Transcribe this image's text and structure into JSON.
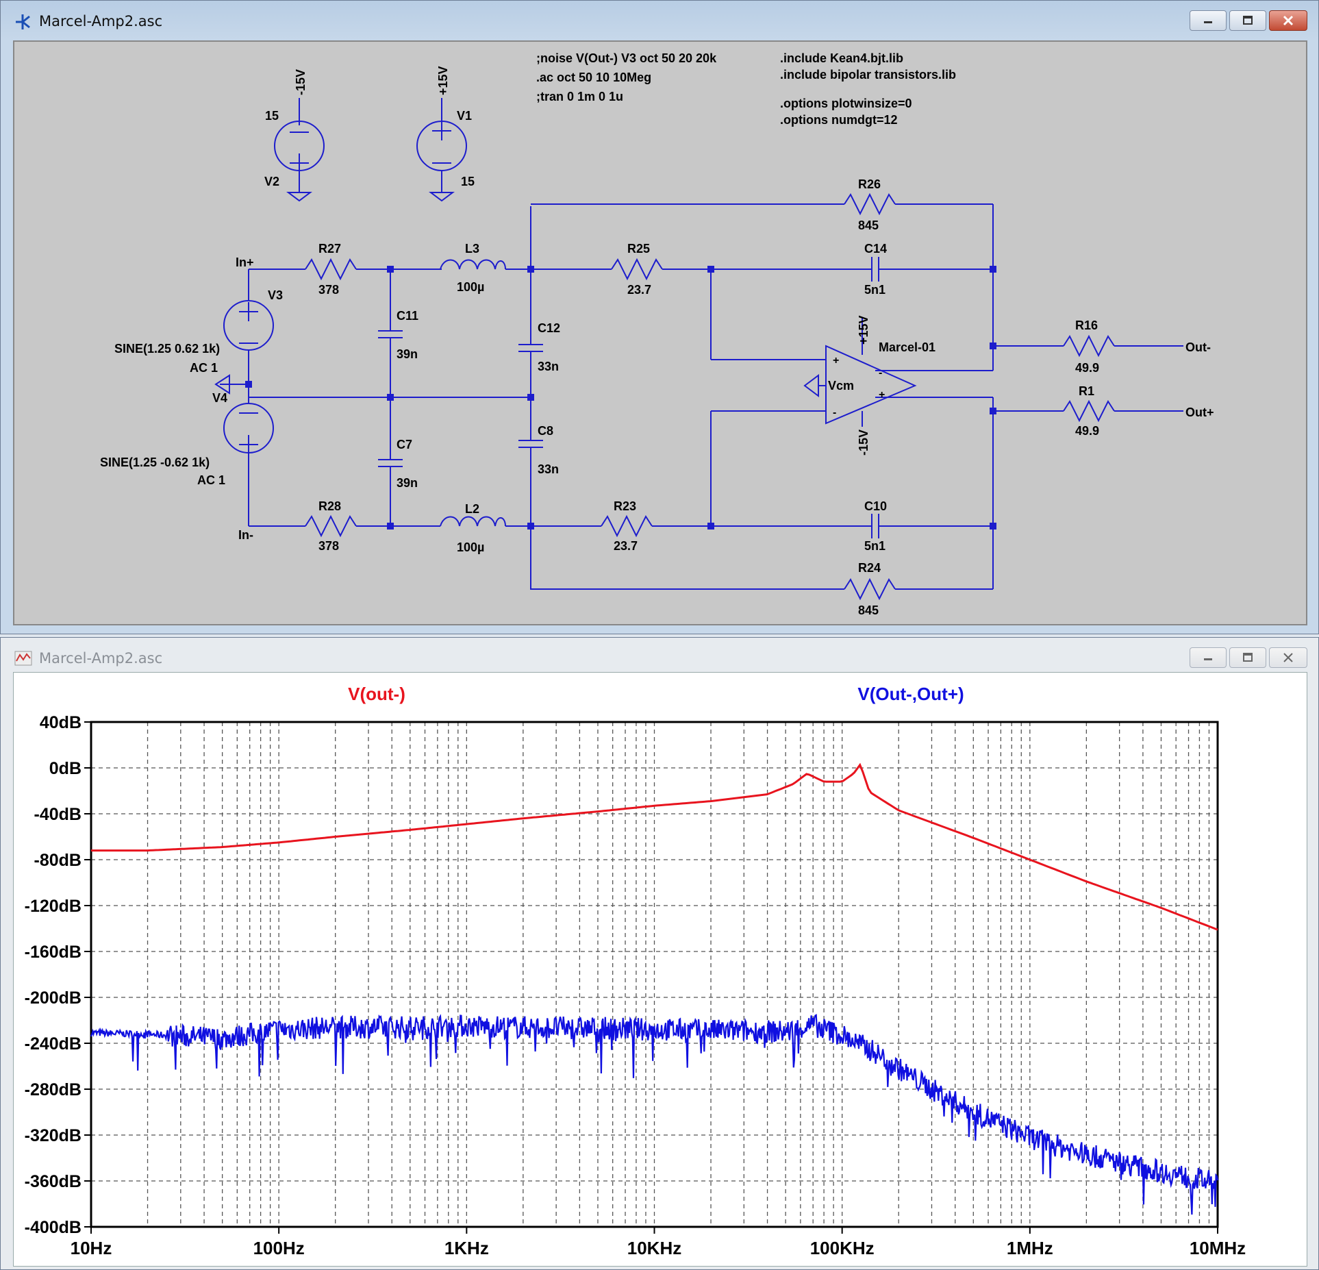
{
  "schematic_window": {
    "title": "Marcel-Amp2.asc",
    "directives": {
      "noise": ";noise V(Out-) V3 oct 50 20 20k",
      "ac": ".ac oct 50 10 10Meg",
      "tran": ";tran 0 1m 0 1u",
      "include1": ".include Kean4.bjt.lib",
      "include2": ".include bipolar transistors.lib",
      "opt1": ".options plotwinsize=0",
      "opt2": ".options numdgt=12"
    },
    "sources": {
      "v2_name": "V2",
      "v2_value": "15",
      "v2_net": "-15V",
      "v1_name": "V1",
      "v1_value": "15",
      "v1_net": "+15V",
      "v3_name": "V3",
      "v3_value": "SINE(1.25 0.62 1k)",
      "v3_ac": "AC 1",
      "v4_name": "V4",
      "v4_value": "SINE(1.25 -0.62 1k)",
      "v4_ac": "AC 1"
    },
    "nets": {
      "in_plus": "In+",
      "in_minus": "In-",
      "out_minus": "Out-",
      "out_plus": "Out+",
      "vcm": "Vcm",
      "pos15": "+15V",
      "neg15": "-15V"
    },
    "components": {
      "r27": "R27",
      "r27v": "378",
      "r28": "R28",
      "r28v": "378",
      "l3": "L3",
      "l3v": "100µ",
      "l2": "L2",
      "l2v": "100µ",
      "c11": "C11",
      "c11v": "39n",
      "c7": "C7",
      "c7v": "39n",
      "c12": "C12",
      "c12v": "33n",
      "c8": "C8",
      "c8v": "33n",
      "r25": "R25",
      "r25v": "23.7",
      "r23": "R23",
      "r23v": "23.7",
      "r26": "R26",
      "r26v": "845",
      "r24": "R24",
      "r24v": "845",
      "c14": "C14",
      "c14v": "5n1",
      "c10": "C10",
      "c10v": "5n1",
      "r16": "R16",
      "r16v": "49.9",
      "r1": "R1",
      "r1v": "49.9",
      "opamp": "Marcel-01"
    }
  },
  "plot_window": {
    "title": "Marcel-Amp2.asc"
  },
  "chart_data": {
    "type": "line",
    "xscale": "log",
    "xlim": [
      10,
      10000000
    ],
    "ylim": [
      -400,
      40
    ],
    "x_ticks": [
      "10Hz",
      "100Hz",
      "1KHz",
      "10KHz",
      "100KHz",
      "1MHz",
      "10MHz"
    ],
    "y_ticks": [
      "40dB",
      "0dB",
      "-40dB",
      "-80dB",
      "-120dB",
      "-160dB",
      "-200dB",
      "-240dB",
      "-280dB",
      "-320dB",
      "-360dB",
      "-400dB"
    ],
    "grid": true,
    "legend_position": "top",
    "series": [
      {
        "name": "V(out-)",
        "color": "#e8141e",
        "x": [
          10,
          20,
          50,
          100,
          200,
          500,
          1000,
          2000,
          5000,
          10000,
          20000,
          40000,
          55000,
          65000,
          80000,
          100000,
          115000,
          125000,
          140000,
          200000,
          500000,
          1000000,
          2000000,
          5000000,
          10000000
        ],
        "y": [
          -72,
          -72,
          -69,
          -65,
          -60,
          -54,
          -49,
          -44,
          -38,
          -33,
          -29,
          -23,
          -14,
          -5,
          -12,
          -12,
          -5,
          3,
          -21,
          -37,
          -61,
          -80,
          -99,
          -122,
          -141
        ]
      },
      {
        "name": "V(Out-,Out+)",
        "color": "#1010e0",
        "x": [
          10,
          20,
          50,
          100,
          200,
          500,
          1000,
          2000,
          5000,
          10000,
          20000,
          50000,
          70000,
          100000,
          150000,
          200000,
          300000,
          500000,
          1000000,
          2000000,
          5000000,
          10000000
        ],
        "y": [
          -231,
          -232,
          -236,
          -228,
          -226,
          -226,
          -225,
          -226,
          -227,
          -228,
          -229,
          -230,
          -224,
          -233,
          -248,
          -262,
          -280,
          -300,
          -322,
          -337,
          -352,
          -362
        ]
      }
    ]
  }
}
